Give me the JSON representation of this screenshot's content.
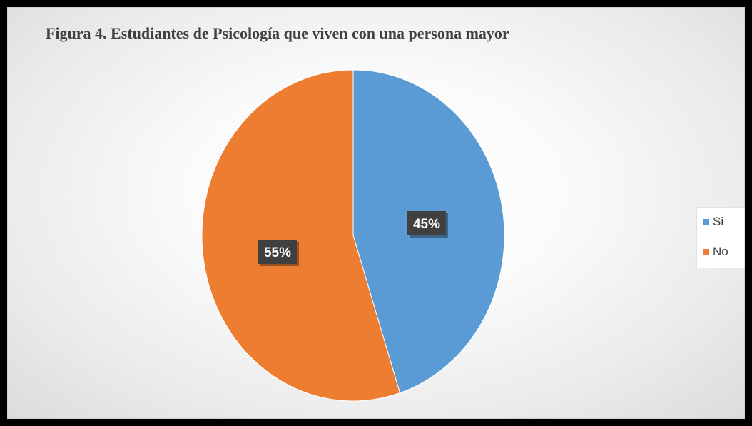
{
  "chart_data": {
    "type": "pie",
    "title": "Figura 4. Estudiantes de Psicología que viven con una persona mayor",
    "categories": [
      "Si",
      "No"
    ],
    "values": [
      45,
      55
    ],
    "data_labels": [
      "45%",
      "55%"
    ],
    "colors": [
      "#5B9BD5",
      "#ED7D31"
    ],
    "legend_position": "right",
    "label_box_color": "#404040",
    "label_text_color": "#ffffff"
  }
}
